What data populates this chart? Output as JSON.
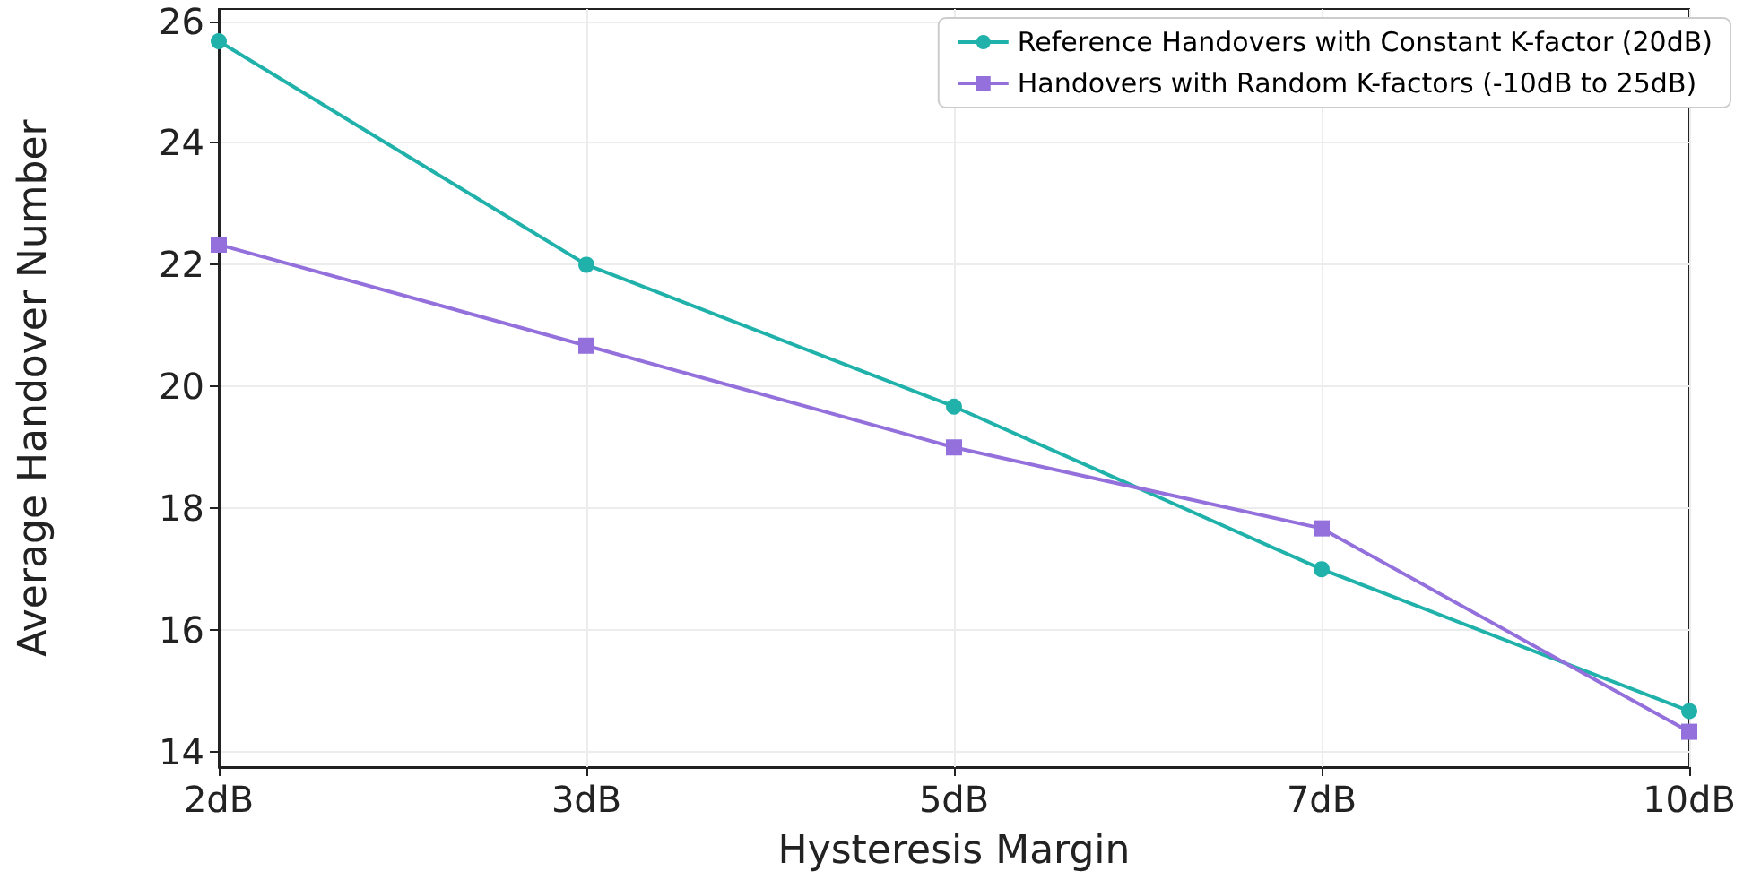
{
  "chart_data": {
    "type": "line",
    "xlabel": "Hysteresis Margin",
    "ylabel": "Average Handover Number",
    "categories": [
      "2dB",
      "3dB",
      "5dB",
      "7dB",
      "10dB"
    ],
    "series": [
      {
        "name": "Reference Handovers with Constant K-factor (20dB)",
        "color": "#20b2aa",
        "marker": "circle",
        "values": [
          25.67,
          22.0,
          19.67,
          17.0,
          14.67
        ]
      },
      {
        "name": "Handovers with Random K-factors (-10dB to 25dB)",
        "color": "#9370db",
        "marker": "square",
        "values": [
          22.33,
          20.67,
          19.0,
          17.67,
          14.33
        ]
      }
    ],
    "ylim": [
      13.75,
      26.2
    ],
    "yticks": [
      14,
      16,
      18,
      20,
      22,
      24,
      26
    ],
    "grid": true,
    "legend": "top right",
    "line_style": "solid"
  }
}
